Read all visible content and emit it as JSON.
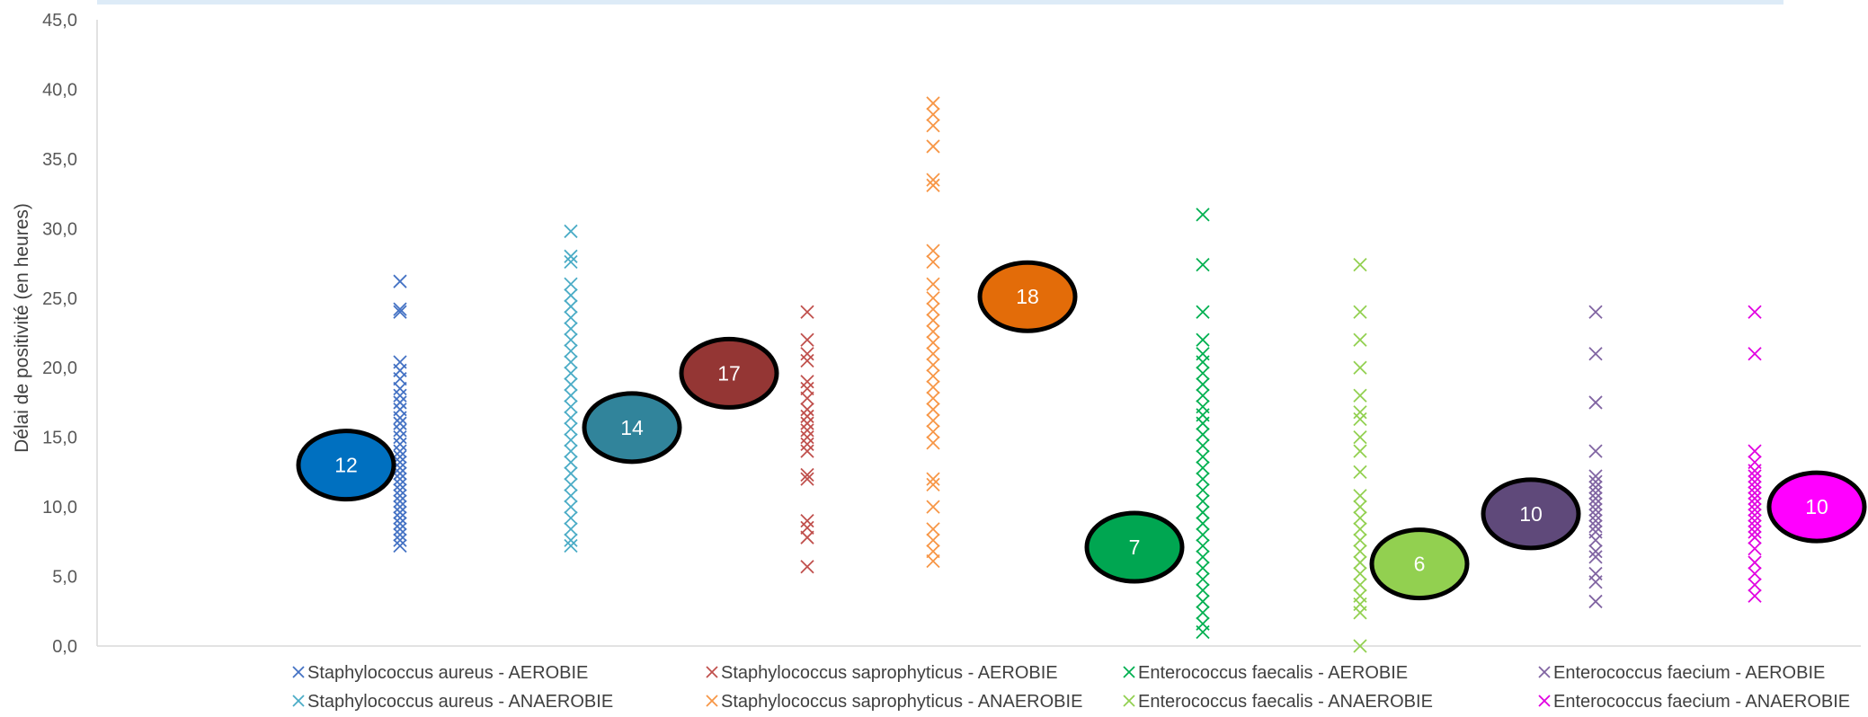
{
  "chart_data": {
    "type": "scatter",
    "ylabel": "Délai de positivité (en heures)",
    "xlabel": "",
    "ylim": [
      0,
      45
    ],
    "yticks": [
      "0,0",
      "5,0",
      "10,0",
      "15,0",
      "20,0",
      "25,0",
      "30,0",
      "35,0",
      "40,0",
      "45,0"
    ],
    "grid": false,
    "legend_position": "bottom",
    "series": [
      {
        "name": "Staphylococcus aureus - AEROBIE",
        "color": "#4472C4",
        "marker": "x",
        "group": 1,
        "values": [
          26.2,
          24.2,
          24.0,
          20.4,
          19.8,
          19.2,
          18.5,
          18.0,
          17.5,
          17.0,
          16.4,
          16.0,
          15.5,
          15.0,
          14.5,
          14.0,
          13.6,
          13.2,
          12.8,
          12.4,
          12.0,
          11.6,
          11.2,
          10.8,
          10.4,
          10.0,
          9.6,
          9.2,
          8.8,
          8.4,
          8.0,
          7.6,
          7.2
        ]
      },
      {
        "name": "Staphylococcus aureus - ANAEROBIE",
        "color": "#4BACC6",
        "marker": "x",
        "group": 2,
        "values": [
          29.8,
          28.0,
          27.6,
          26.0,
          25.2,
          24.4,
          23.6,
          22.8,
          22.0,
          21.2,
          20.4,
          19.6,
          18.8,
          18.0,
          17.2,
          16.4,
          15.6,
          14.8,
          14.0,
          13.2,
          12.4,
          11.6,
          10.8,
          10.0,
          9.2,
          8.4,
          7.6,
          7.2
        ]
      },
      {
        "name": "Staphylococcus saprophyticus - AEROBIE",
        "color": "#C0504D",
        "marker": "x",
        "group": 3,
        "values": [
          24.0,
          22.0,
          21.0,
          20.5,
          19.0,
          18.5,
          17.8,
          17.0,
          16.5,
          16.0,
          15.5,
          15.0,
          14.5,
          14.0,
          12.3,
          12.0,
          9.0,
          8.5,
          7.8,
          5.7
        ]
      },
      {
        "name": "Staphylococcus saprophyticus - ANAEROBIE",
        "color": "#F79646",
        "marker": "x",
        "group": 4,
        "values": [
          39.0,
          38.2,
          37.4,
          35.9,
          33.5,
          33.1,
          28.4,
          27.6,
          26.0,
          25.0,
          24.2,
          23.4,
          22.6,
          21.8,
          21.0,
          20.2,
          19.4,
          18.6,
          17.8,
          17.0,
          16.2,
          15.4,
          14.6,
          12.0,
          11.6,
          10.0,
          8.4,
          7.6,
          6.8,
          6.1
        ]
      },
      {
        "name": "Enterococcus faecalis - AEROBIE",
        "color": "#00B050",
        "marker": "x",
        "group": 5,
        "values": [
          31.0,
          27.4,
          24.0,
          22.0,
          21.0,
          20.4,
          19.6,
          18.8,
          18.0,
          17.2,
          16.6,
          16.0,
          15.2,
          14.4,
          13.6,
          12.8,
          12.0,
          11.2,
          10.4,
          9.6,
          8.8,
          8.0,
          7.2,
          6.4,
          5.6,
          4.8,
          4.0,
          3.2,
          2.4,
          1.6,
          1.0
        ]
      },
      {
        "name": "Enterococcus faecalis - ANAEROBIE",
        "color": "#92D050",
        "marker": "x",
        "group": 6,
        "values": [
          27.4,
          24.0,
          22.0,
          20.0,
          18.0,
          16.8,
          16.3,
          15.0,
          14.0,
          12.5,
          10.8,
          10.0,
          9.2,
          8.4,
          7.6,
          6.8,
          6.0,
          5.2,
          4.4,
          3.6,
          3.0,
          2.4,
          0.0
        ]
      },
      {
        "name": "Enterococcus faecium - AEROBIE",
        "color": "#8064A2",
        "marker": "x",
        "group": 7,
        "values": [
          24.0,
          21.0,
          17.5,
          14.0,
          12.2,
          11.8,
          11.4,
          11.0,
          10.6,
          10.2,
          9.8,
          9.4,
          9.0,
          8.6,
          8.2,
          7.6,
          6.8,
          6.4,
          5.2,
          4.6,
          3.2
        ]
      },
      {
        "name": "Enterococcus faecium - ANAEROBIE",
        "color": "#E100E1",
        "marker": "x",
        "group": 8,
        "values": [
          24.0,
          21.0,
          14.0,
          13.2,
          12.6,
          12.2,
          11.8,
          11.4,
          11.0,
          10.6,
          10.2,
          9.8,
          9.4,
          9.0,
          8.6,
          8.2,
          7.8,
          7.0,
          6.0,
          5.2,
          4.4,
          3.6
        ]
      }
    ],
    "annotations": [
      {
        "text": "12",
        "x": 1,
        "y": 13.0,
        "fill": "#0070C0"
      },
      {
        "text": "14",
        "x": 2,
        "y": 15.7,
        "fill": "#31849B"
      },
      {
        "text": "17",
        "x": 3,
        "y": 19.6,
        "fill": "#943634"
      },
      {
        "text": "18",
        "x": 4,
        "y": 25.1,
        "fill": "#E36C09"
      },
      {
        "text": "7",
        "x": 5,
        "y": 7.1,
        "fill": "#00A651"
      },
      {
        "text": "6",
        "x": 6,
        "y": 5.9,
        "fill": "#92D050"
      },
      {
        "text": "10",
        "x": 7,
        "y": 9.5,
        "fill": "#5F497A"
      },
      {
        "text": "10",
        "x": 8,
        "y": 10.0,
        "fill": "#FF00FF"
      }
    ]
  }
}
